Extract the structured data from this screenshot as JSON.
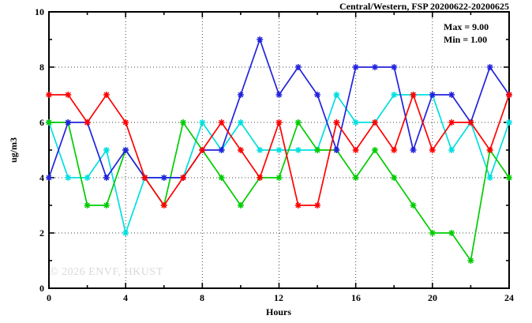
{
  "window": {
    "title": "Central/Western, FSP 20200622-20200625"
  },
  "annotation": {
    "max": "Max = 9.00",
    "min": "Min = 1.00"
  },
  "watermark": "© 2026 ENVF, HKUST",
  "chart_data": {
    "type": "line",
    "title": "Central/Western, FSP 20200622-20200625",
    "xlabel": "Hours",
    "ylabel": "ug/m3",
    "xlim": [
      0,
      24
    ],
    "ylim": [
      0,
      10
    ],
    "xticks": [
      0,
      4,
      8,
      12,
      16,
      20,
      24
    ],
    "xticks_minor": [
      2,
      6,
      10,
      14,
      18,
      22
    ],
    "yticks": [
      0,
      2,
      4,
      6,
      8,
      10
    ],
    "yticks_minor": [
      1,
      3,
      5,
      7,
      9
    ],
    "grid": true,
    "legend_position": "none",
    "marker": "asterisk",
    "x": [
      0,
      1,
      2,
      3,
      4,
      5,
      6,
      7,
      8,
      9,
      10,
      11,
      12,
      13,
      14,
      15,
      16,
      17,
      18,
      19,
      20,
      21,
      22,
      23,
      24
    ],
    "series": [
      {
        "name": "series-cyan",
        "color": "#00dfdf",
        "values": [
          6,
          4,
          4,
          5,
          2,
          4,
          4,
          4,
          6,
          5,
          6,
          5,
          5,
          5,
          5,
          7,
          6,
          6,
          7,
          7,
          7,
          5,
          6,
          4,
          6
        ]
      },
      {
        "name": "series-green",
        "color": "#00cc00",
        "values": [
          6,
          6,
          3,
          3,
          5,
          4,
          3,
          6,
          5,
          4,
          3,
          4,
          4,
          6,
          5,
          5,
          4,
          5,
          4,
          3,
          2,
          2,
          1,
          5,
          4
        ]
      },
      {
        "name": "series-blue",
        "color": "#2222dd",
        "values": [
          4,
          6,
          6,
          4,
          5,
          4,
          4,
          4,
          5,
          5,
          7,
          9,
          7,
          8,
          7,
          5,
          8,
          8,
          8,
          5,
          7,
          7,
          6,
          8,
          7
        ]
      },
      {
        "name": "series-red",
        "color": "#ff0000",
        "values": [
          7,
          7,
          6,
          7,
          6,
          4,
          3,
          4,
          5,
          6,
          5,
          4,
          6,
          3,
          3,
          6,
          5,
          6,
          5,
          7,
          5,
          6,
          6,
          5,
          7
        ]
      }
    ],
    "stats_annotation": {
      "max": 9.0,
      "min": 1.0
    }
  }
}
